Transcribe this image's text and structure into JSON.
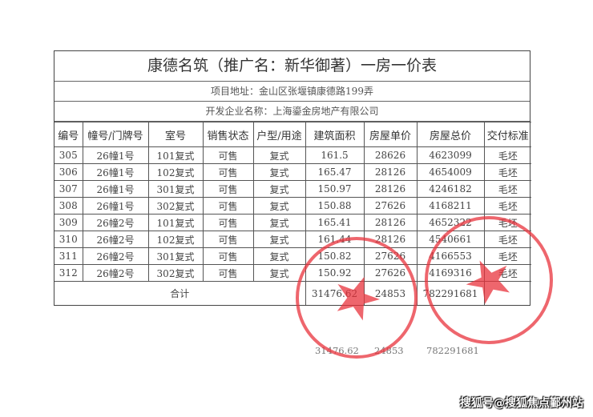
{
  "title": "康德名筑（推广名：新华御著）一房一价表",
  "address": "项目地址：金山区张堰镇康德路199弄",
  "developer": "开发企业名称：上海鎏金房地产有限公司",
  "columns": [
    "编号",
    "幢号/门牌号",
    "室号",
    "销售状态",
    "户型/用途",
    "建筑面积",
    "房屋单价",
    "房屋总价",
    "交付标准"
  ],
  "rows": [
    [
      "305",
      "26幢1号",
      "101复式",
      "可售",
      "复式",
      "161.5",
      "28626",
      "4623099",
      "毛坯"
    ],
    [
      "306",
      "26幢1号",
      "102复式",
      "可售",
      "复式",
      "165.47",
      "28126",
      "4654009",
      "毛坯"
    ],
    [
      "307",
      "26幢1号",
      "301复式",
      "可售",
      "复式",
      "150.97",
      "28126",
      "4246182",
      "毛坯"
    ],
    [
      "308",
      "26幢1号",
      "302复式",
      "可售",
      "复式",
      "150.88",
      "27626",
      "4168211",
      "毛坯"
    ],
    [
      "309",
      "26幢2号",
      "101复式",
      "可售",
      "复式",
      "165.41",
      "28126",
      "4652322",
      "毛坯"
    ],
    [
      "310",
      "26幢2号",
      "102复式",
      "可售",
      "复式",
      "161.44",
      "28126",
      "4540661",
      "毛坯"
    ],
    [
      "311",
      "26幢2号",
      "301复式",
      "可售",
      "复式",
      "150.82",
      "27626",
      "4166553",
      "毛坯"
    ],
    [
      "312",
      "26幢2号",
      "302复式",
      "可售",
      "复式",
      "150.92",
      "27626",
      "4169316",
      "毛坯"
    ]
  ],
  "total": {
    "label": "合计",
    "area": "31476.62",
    "unit_price": "24853",
    "total_price": "782291681"
  },
  "reprint": {
    "area": "31476.62",
    "unit_price": "24853",
    "total_price": "782291681"
  },
  "stamp_color": "#e8333c",
  "watermark": "搜狐号@搜狐焦点鄞州站"
}
